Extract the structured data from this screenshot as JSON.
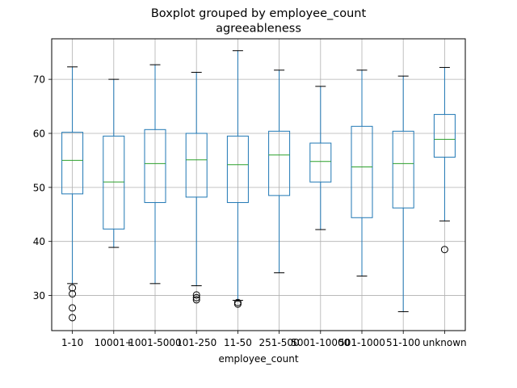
{
  "chart_data": {
    "type": "boxplot",
    "title": "Boxplot grouped by employee_count",
    "subtitle": "agreeableness",
    "xlabel": "employee_count",
    "ylabel": "",
    "ylim": [
      23.5,
      77.5
    ],
    "yticks": [
      30,
      40,
      50,
      60,
      70
    ],
    "grid": true,
    "colors": {
      "box": "#1f77b4",
      "median": "#2ca02c",
      "cap": "#000000",
      "grid": "#b0b0b0"
    },
    "categories": [
      "1-10",
      "10001+",
      "1001-5000",
      "101-250",
      "11-50",
      "251-500",
      "5001-10000",
      "501-1000",
      "51-100",
      "unknown"
    ],
    "boxes": [
      {
        "whislo": 32.2,
        "q1": 48.8,
        "med": 55.0,
        "q3": 60.2,
        "whishi": 72.3,
        "fliers": [
          31.4,
          30.3,
          27.7,
          25.9
        ]
      },
      {
        "whislo": 38.9,
        "q1": 42.3,
        "med": 51.0,
        "q3": 59.5,
        "whishi": 70.0,
        "fliers": []
      },
      {
        "whislo": 32.2,
        "q1": 47.2,
        "med": 54.4,
        "q3": 60.7,
        "whishi": 72.7,
        "fliers": []
      },
      {
        "whislo": 31.8,
        "q1": 48.2,
        "med": 55.1,
        "q3": 60.0,
        "whishi": 71.3,
        "fliers": [
          30.1,
          29.6,
          29.2
        ]
      },
      {
        "whislo": 29.1,
        "q1": 47.2,
        "med": 54.2,
        "q3": 59.5,
        "whishi": 75.3,
        "fliers": [
          28.7,
          28.4
        ]
      },
      {
        "whislo": 34.2,
        "q1": 48.5,
        "med": 56.0,
        "q3": 60.4,
        "whishi": 71.7,
        "fliers": []
      },
      {
        "whislo": 42.2,
        "q1": 51.0,
        "med": 54.8,
        "q3": 58.2,
        "whishi": 68.7,
        "fliers": []
      },
      {
        "whislo": 33.6,
        "q1": 44.4,
        "med": 53.8,
        "q3": 61.3,
        "whishi": 71.7,
        "fliers": []
      },
      {
        "whislo": 27.0,
        "q1": 46.2,
        "med": 54.4,
        "q3": 60.4,
        "whishi": 70.6,
        "fliers": []
      },
      {
        "whislo": 43.8,
        "q1": 55.6,
        "med": 58.9,
        "q3": 63.5,
        "whishi": 72.2,
        "fliers": [
          38.5
        ]
      }
    ]
  }
}
